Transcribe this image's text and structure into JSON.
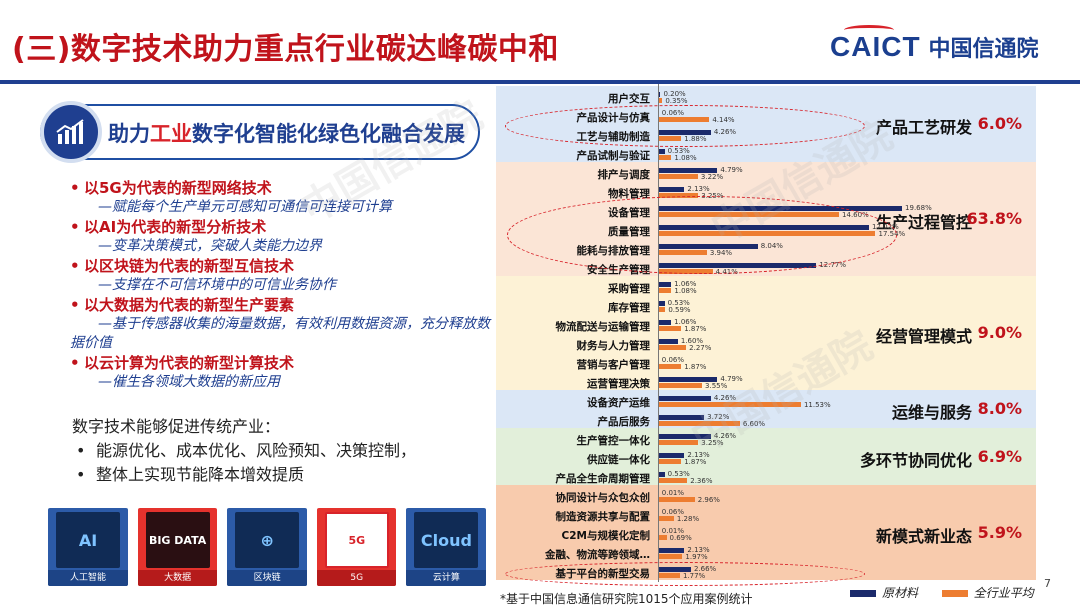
{
  "title": "(三)数字技术助力重点行业碳达峰碳中和",
  "logo": {
    "en": "CAICT",
    "cn": "中国信通院"
  },
  "pill": {
    "pre": "助力",
    "highlight": "工业",
    "post": "数字化智能化绿色化融合发展"
  },
  "bullets": [
    {
      "head": "以5G为代表的新型网络技术",
      "sub": "—赋能每个生产单元可感知可通信可连接可计算"
    },
    {
      "head": "以AI为代表的新型分析技术",
      "sub": "—变革决策模式，突破人类能力边界"
    },
    {
      "head": "以区块链为代表的新型互信技术",
      "sub": "—支撑在不可信环境中的可信业务协作"
    },
    {
      "head": "以大数据为代表的新型生产要素",
      "sub": "—基于传感器收集的海量数据，有效利用数据资源，充分释放数据价值"
    },
    {
      "head": "以云计算为代表的新型计算技术",
      "sub": "—催生各领域大数据的新应用"
    }
  ],
  "para": {
    "lead": "数字技术能够促进传统产业：",
    "items": [
      "能源优化、成本优化、风险预知、决策控制，",
      "整体上实现节能降本增效提质"
    ]
  },
  "tiles": [
    {
      "art": "AI",
      "cap": "人工智能"
    },
    {
      "art": "BIG DATA",
      "cap": "大数据"
    },
    {
      "art": "⊕",
      "cap": "区块链"
    },
    {
      "art": "5G",
      "cap": "5G"
    },
    {
      "art": "Cloud",
      "cap": "云计算"
    }
  ],
  "chart_data": {
    "type": "bar",
    "orientation": "horizontal",
    "legend_position": "bottom-right",
    "series_names": [
      "原材料",
      "全行业平均"
    ],
    "colors": {
      "原材料": "#1b2a6b",
      "全行业平均": "#ed7d31"
    },
    "xlim": [
      0,
      20
    ],
    "groups": [
      {
        "label": "产品工艺研发",
        "pct": "6.0%",
        "color": "#dbe7f6",
        "rows": [
          {
            "cat": "用户交互",
            "a": 0.2,
            "b": 0.35,
            "la": "0.20%",
            "lb": "0.35%"
          },
          {
            "cat": "产品设计与仿真",
            "a": 0.06,
            "b": 4.14,
            "la": "0.06%",
            "lb": "4.14%"
          },
          {
            "cat": "工艺与辅助制造",
            "a": 4.26,
            "b": 1.88,
            "la": "4.26%",
            "lb": "1.88%"
          },
          {
            "cat": "产品试制与验证",
            "a": 0.53,
            "b": 1.08,
            "la": "0.53%",
            "lb": "1.08%"
          }
        ]
      },
      {
        "label": "生产过程管控",
        "pct": "63.8%",
        "color": "#fbe5d6",
        "rows": [
          {
            "cat": "排产与调度",
            "a": 4.79,
            "b": 3.22,
            "la": "4.79%",
            "lb": "3.22%"
          },
          {
            "cat": "物料管理",
            "a": 2.13,
            "b": 3.25,
            "la": "2.13%",
            "lb": "3.25%"
          },
          {
            "cat": "设备管理",
            "a": 19.68,
            "b": 14.6,
            "la": "19.68%",
            "lb": "14.60%"
          },
          {
            "cat": "质量管理",
            "a": 17.02,
            "b": 17.54,
            "la": "17.02%",
            "lb": "17.54%"
          },
          {
            "cat": "能耗与排放管理",
            "a": 8.04,
            "b": 3.94,
            "la": "8.04%",
            "lb": "3.94%"
          },
          {
            "cat": "安全生产管理",
            "a": 12.77,
            "b": 4.41,
            "la": "12.77%",
            "lb": "4.41%"
          }
        ]
      },
      {
        "label": "经营管理模式",
        "pct": "9.0%",
        "color": "#fdf2d6",
        "rows": [
          {
            "cat": "采购管理",
            "a": 1.06,
            "b": 1.08,
            "la": "1.06%",
            "lb": "1.08%"
          },
          {
            "cat": "库存管理",
            "a": 0.53,
            "b": 0.59,
            "la": "0.53%",
            "lb": "0.59%"
          },
          {
            "cat": "物流配送与运输管理",
            "a": 1.06,
            "b": 1.87,
            "la": "1.06%",
            "lb": "1.87%"
          },
          {
            "cat": "财务与人力管理",
            "a": 1.6,
            "b": 2.27,
            "la": "1.60%",
            "lb": "2.27%"
          },
          {
            "cat": "营销与客户管理",
            "a": 0.06,
            "b": 1.87,
            "la": "0.06%",
            "lb": "1.87%"
          },
          {
            "cat": "运营管理决策",
            "a": 4.79,
            "b": 3.55,
            "la": "4.79%",
            "lb": "3.55%"
          }
        ]
      },
      {
        "label": "运维与服务",
        "pct": "8.0%",
        "color": "#dbe7f6",
        "rows": [
          {
            "cat": "设备资产运维",
            "a": 4.26,
            "b": 11.53,
            "la": "4.26%",
            "lb": "11.53%"
          },
          {
            "cat": "产品后服务",
            "a": 3.72,
            "b": 6.6,
            "la": "3.72%",
            "lb": "6.60%"
          }
        ]
      },
      {
        "label": "多环节协同优化",
        "pct": "6.9%",
        "color": "#e2efda",
        "rows": [
          {
            "cat": "生产管控一体化",
            "a": 4.26,
            "b": 3.25,
            "la": "4.26%",
            "lb": "3.25%"
          },
          {
            "cat": "供应链一体化",
            "a": 2.13,
            "b": 1.87,
            "la": "2.13%",
            "lb": "1.87%"
          },
          {
            "cat": "产品全生命周期管理",
            "a": 0.53,
            "b": 2.36,
            "la": "0.53%",
            "lb": "2.36%"
          }
        ]
      },
      {
        "label": "新模式新业态",
        "pct": "5.9%",
        "color": "#f8cbad",
        "rows": [
          {
            "cat": "协同设计与众包众创",
            "a": 0.01,
            "b": 2.96,
            "la": "0.01%",
            "lb": "2.96%"
          },
          {
            "cat": "制造资源共享与配置",
            "a": 0.06,
            "b": 1.28,
            "la": "0.06%",
            "lb": "1.28%"
          },
          {
            "cat": "C2M与规模化定制",
            "a": 0.01,
            "b": 0.69,
            "la": "0.01%",
            "lb": "0.69%"
          },
          {
            "cat": "金融、物流等跨领域…",
            "a": 2.13,
            "b": 1.97,
            "la": "2.13%",
            "lb": "1.97%"
          },
          {
            "cat": "基于平台的新型交易",
            "a": 2.66,
            "b": 1.77,
            "la": "2.66%",
            "lb": "1.77%"
          }
        ]
      }
    ]
  },
  "page_number": "7",
  "footnote": "*基于中国信息通信研究院1015个应用案例统计"
}
